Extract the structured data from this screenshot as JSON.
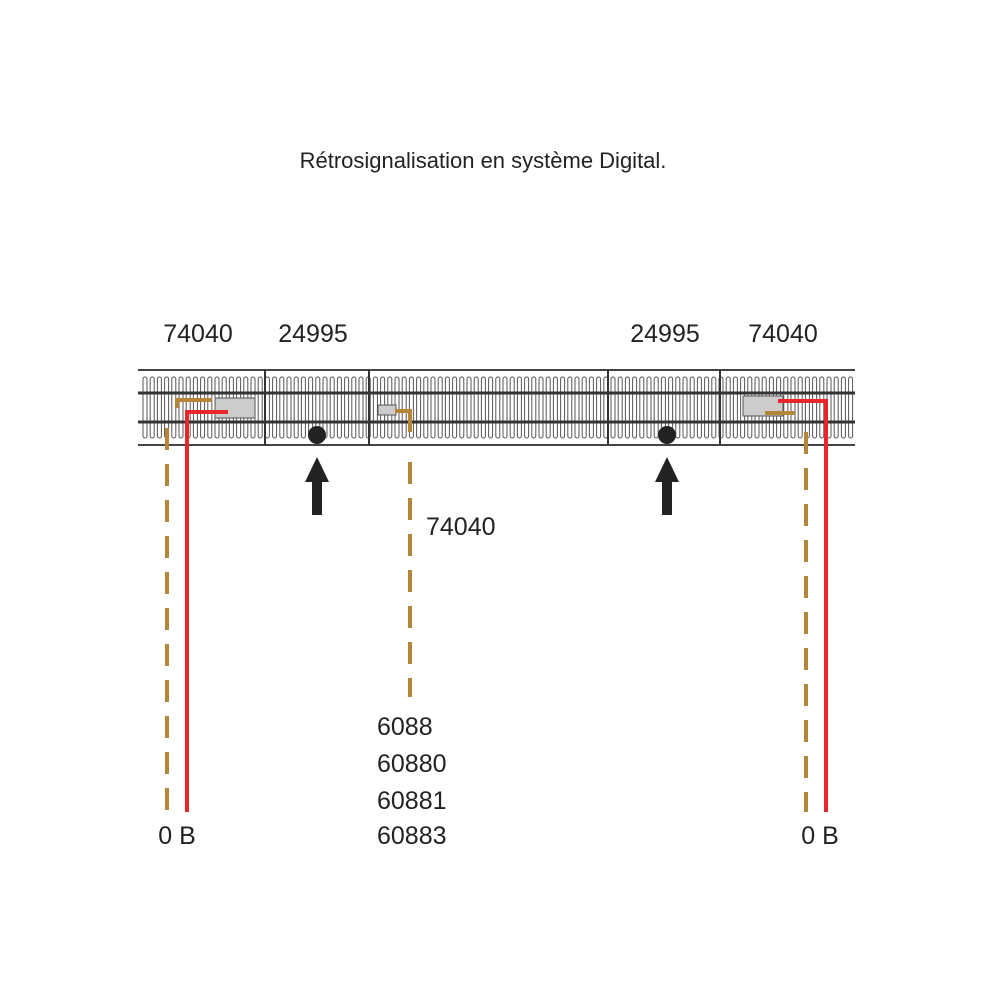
{
  "title": "Rétrosignalisation en système Digital.",
  "labels": {
    "left_74040": "74040",
    "left_24995": "24995",
    "right_24995": "24995",
    "right_74040": "74040",
    "center_74040": "74040"
  },
  "center_list": [
    "6088",
    "60880",
    "60881",
    "60883"
  ],
  "left_terminal": "0 B",
  "right_terminal": "0 B",
  "colors": {
    "wire_red": "#e8262b",
    "wire_brown": "#b5863a",
    "track": "#333333",
    "arrow": "#222222"
  }
}
